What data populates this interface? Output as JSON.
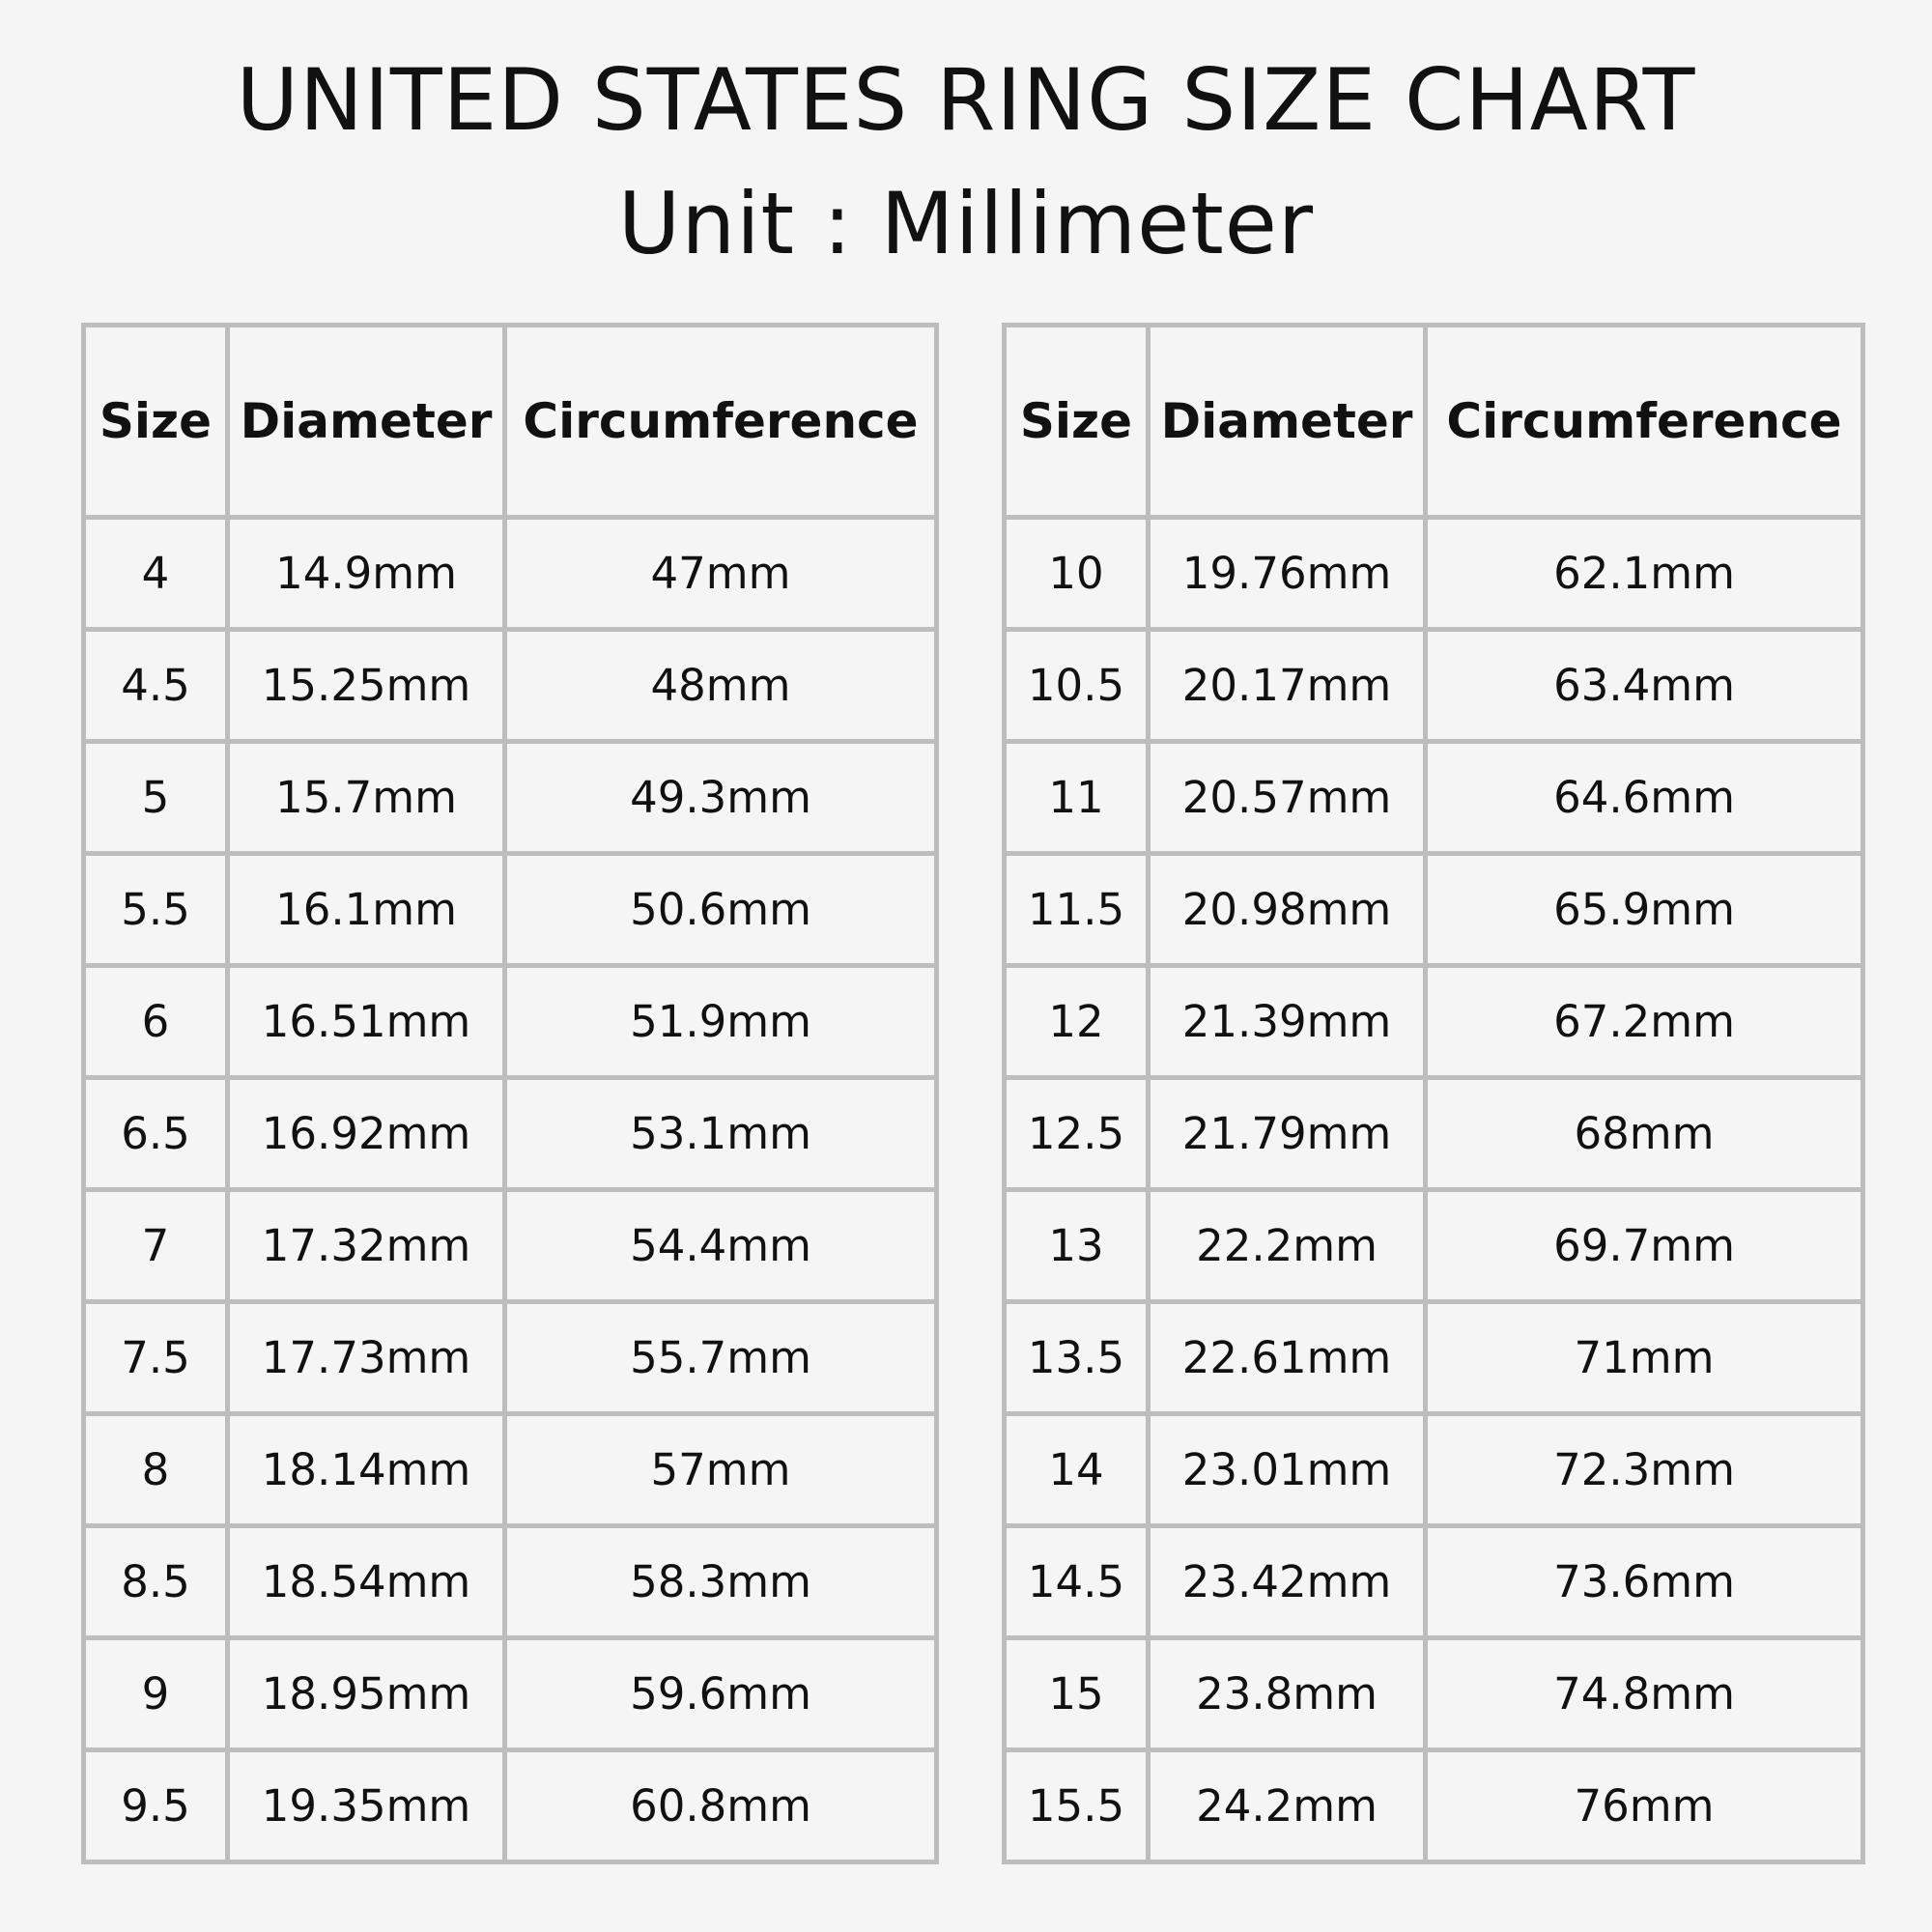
{
  "title": "UNITED STATES RING SIZE CHART",
  "subtitle": "Unit : Millimeter",
  "columns": [
    "Size",
    "Diameter",
    "Circumference"
  ],
  "tables": [
    {
      "rows": [
        [
          "4",
          "14.9mm",
          "47mm"
        ],
        [
          "4.5",
          "15.25mm",
          "48mm"
        ],
        [
          "5",
          "15.7mm",
          "49.3mm"
        ],
        [
          "5.5",
          "16.1mm",
          "50.6mm"
        ],
        [
          "6",
          "16.51mm",
          "51.9mm"
        ],
        [
          "6.5",
          "16.92mm",
          "53.1mm"
        ],
        [
          "7",
          "17.32mm",
          "54.4mm"
        ],
        [
          "7.5",
          "17.73mm",
          "55.7mm"
        ],
        [
          "8",
          "18.14mm",
          "57mm"
        ],
        [
          "8.5",
          "18.54mm",
          "58.3mm"
        ],
        [
          "9",
          "18.95mm",
          "59.6mm"
        ],
        [
          "9.5",
          "19.35mm",
          "60.8mm"
        ]
      ]
    },
    {
      "rows": [
        [
          "10",
          "19.76mm",
          "62.1mm"
        ],
        [
          "10.5",
          "20.17mm",
          "63.4mm"
        ],
        [
          "11",
          "20.57mm",
          "64.6mm"
        ],
        [
          "11.5",
          "20.98mm",
          "65.9mm"
        ],
        [
          "12",
          "21.39mm",
          "67.2mm"
        ],
        [
          "12.5",
          "21.79mm",
          "68mm"
        ],
        [
          "13",
          "22.2mm",
          "69.7mm"
        ],
        [
          "13.5",
          "22.61mm",
          "71mm"
        ],
        [
          "14",
          "23.01mm",
          "72.3mm"
        ],
        [
          "14.5",
          "23.42mm",
          "73.6mm"
        ],
        [
          "15",
          "23.8mm",
          "74.8mm"
        ],
        [
          "15.5",
          "24.2mm",
          "76mm"
        ]
      ]
    }
  ],
  "colors": {
    "background": "#f5f5f5",
    "border": "#bdbdbd",
    "text": "#111111"
  }
}
